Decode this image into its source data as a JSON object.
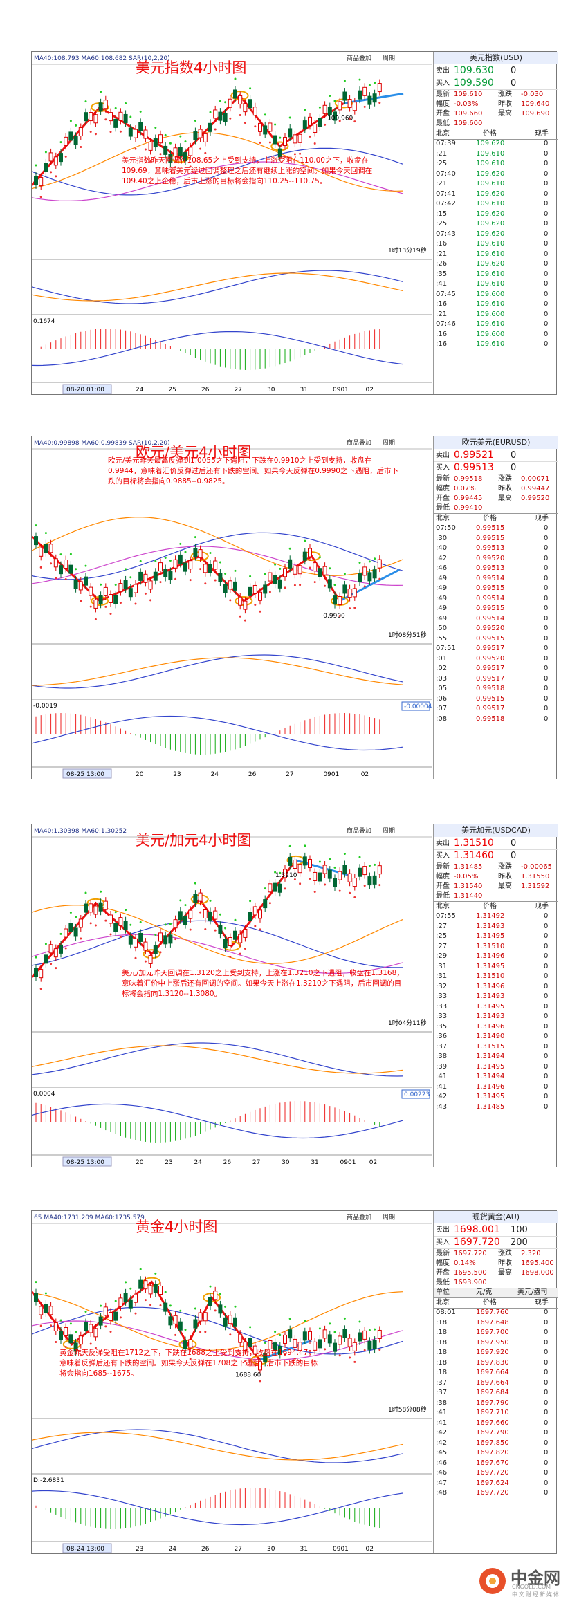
{
  "panels": [
    {
      "title": "美元指数4小时图",
      "indicator": "MA40:108.793 MA60:108.682 SAR(10,2,20)",
      "buttons": [
        "商品叠加",
        "周期"
      ],
      "price_label": "109.969",
      "timer": "1时13分19秒",
      "macd_label": "0.1674",
      "side_label": null,
      "cursor_date": "08-20 01:00",
      "x_labels": [
        "24",
        "25",
        "26",
        "27",
        "30",
        "31",
        "0901",
        "02"
      ],
      "annotation": "美元指数昨天回调在108.65之上受到支持，上涨受阻在110.00之下，收盘在109.69，意味着美元经过回调整理之后还有继续上涨的空间。如果今天回调在109.40之上企稳，后市上涨的目标将会指向110.25--110.75。",
      "quote": {
        "name": "美元指数(USD)",
        "big": [
          [
            "卖出",
            "109.630",
            "0"
          ],
          [
            "买入",
            "109.590",
            "0"
          ]
        ],
        "lines": [
          [
            "最新",
            "109.610",
            "涨跌",
            "-0.030"
          ],
          [
            "幅度",
            "-0.03%",
            "昨收",
            "109.640"
          ],
          [
            "开盘",
            "109.660",
            "最高",
            "109.690"
          ],
          [
            "最低",
            "109.600"
          ]
        ]
      },
      "ticks": {
        "header": [
          "北京",
          "价格",
          "现手"
        ],
        "rows": [
          [
            "07:39",
            "109.620",
            "0"
          ],
          [
            ":21",
            "109.610",
            "0"
          ],
          [
            ":25",
            "109.610",
            "0"
          ],
          [
            "07:40",
            "109.620",
            "0"
          ],
          [
            ":21",
            "109.610",
            "0"
          ],
          [
            "07:41",
            "109.620",
            "0"
          ],
          [
            "07:42",
            "109.610",
            "0"
          ],
          [
            ":15",
            "109.620",
            "0"
          ],
          [
            ":25",
            "109.620",
            "0"
          ],
          [
            "07:43",
            "109.620",
            "0"
          ],
          [
            ":16",
            "109.610",
            "0"
          ],
          [
            ":21",
            "109.610",
            "0"
          ],
          [
            ":26",
            "109.620",
            "0"
          ],
          [
            ":35",
            "109.610",
            "0"
          ],
          [
            ":41",
            "109.610",
            "0"
          ],
          [
            "07:45",
            "109.600",
            "0"
          ],
          [
            ":16",
            "109.610",
            "0"
          ],
          [
            ":21",
            "109.600",
            "0"
          ],
          [
            "07:46",
            "109.610",
            "0"
          ],
          [
            ":16",
            "109.600",
            "0"
          ],
          [
            ":16",
            "109.610",
            "0"
          ]
        ]
      }
    },
    {
      "title": "欧元/美元4小时图",
      "indicator": "MA40:0.99898 MA60:0.99839 SAR(10,2,20)",
      "buttons": [
        "商品叠加",
        "周期"
      ],
      "price_label": "0.9900",
      "timer": "1时08分51秒",
      "macd_label": "-0.0019",
      "side_label": "-0.00004",
      "cursor_date": "08-25 13:00",
      "x_labels": [
        "20",
        "23",
        "24",
        "26",
        "27",
        "0901",
        "02"
      ],
      "annotation": "欧元/美元昨天最高反弹到1.0055之下遇阻，下跌在0.9910之上受到支持，收盘在0.9944，意味着汇价反弹过后还有下跌的空间。如果今天反弹在0.9990之下遇阻，后市下跌的目标将会指向0.9885--0.9825。",
      "quote": {
        "name": "欧元美元(EURUSD)",
        "big": [
          [
            "卖出",
            "0.99521",
            "0"
          ],
          [
            "买入",
            "0.99513",
            "0"
          ]
        ],
        "lines": [
          [
            "最新",
            "0.99518",
            "涨跌",
            "0.00071"
          ],
          [
            "幅度",
            "0.07%",
            "昨收",
            "0.99447"
          ],
          [
            "开盘",
            "0.99445",
            "最高",
            "0.99520"
          ],
          [
            "最低",
            "0.99410"
          ]
        ]
      },
      "ticks": {
        "header": [
          "北京",
          "价格",
          "现手"
        ],
        "rows": [
          [
            "07:50",
            "0.99515",
            "0"
          ],
          [
            ":30",
            "0.99515",
            "0"
          ],
          [
            ":40",
            "0.99513",
            "0"
          ],
          [
            ":42",
            "0.99520",
            "0"
          ],
          [
            ":46",
            "0.99513",
            "0"
          ],
          [
            ":49",
            "0.99514",
            "0"
          ],
          [
            ":49",
            "0.99515",
            "0"
          ],
          [
            ":49",
            "0.99514",
            "0"
          ],
          [
            ":49",
            "0.99515",
            "0"
          ],
          [
            ":49",
            "0.99514",
            "0"
          ],
          [
            ":50",
            "0.99520",
            "0"
          ],
          [
            ":55",
            "0.99515",
            "0"
          ],
          [
            "07:51",
            "0.99517",
            "0"
          ],
          [
            ":01",
            "0.99520",
            "0"
          ],
          [
            ":02",
            "0.99517",
            "0"
          ],
          [
            ":03",
            "0.99517",
            "0"
          ],
          [
            ":05",
            "0.99518",
            "0"
          ],
          [
            ":06",
            "0.99515",
            "0"
          ],
          [
            ":07",
            "0.99517",
            "0"
          ],
          [
            ":08",
            "0.99518",
            "0"
          ]
        ]
      }
    },
    {
      "title": "美元/加元4小时图",
      "indicator": "MA40:1.30398 MA60:1.30252",
      "buttons": [
        "商品叠加",
        "周期"
      ],
      "price_label": "1.3210",
      "timer": "1时04分11秒",
      "macd_label": "0.0004",
      "side_label": "0.00223",
      "cursor_date": "08-25 13:00",
      "x_labels": [
        "20",
        "23",
        "24",
        "26",
        "27",
        "30",
        "31",
        "0901",
        "02"
      ],
      "annotation": "美元/加元昨天回调在1.3120之上受到支持，上涨在1.3210之下遇阻，收盘在1.3168，意味着汇价中上涨后还有回调的空间。如果今天上涨在1.3210之下遇阻，后市回调的目标将会指向1.3120--1.3080。",
      "quote": {
        "name": "美元加元(USDCAD)",
        "big": [
          [
            "卖出",
            "1.31510",
            "0"
          ],
          [
            "买入",
            "1.31460",
            "0"
          ]
        ],
        "lines": [
          [
            "最新",
            "1.31485",
            "涨跌",
            "-0.00065"
          ],
          [
            "幅度",
            "-0.05%",
            "昨收",
            "1.31550"
          ],
          [
            "开盘",
            "1.31540",
            "最高",
            "1.31592"
          ],
          [
            "最低",
            "1.31440"
          ]
        ]
      },
      "ticks": {
        "header": [
          "北京",
          "价格",
          "现手"
        ],
        "rows": [
          [
            "07:55",
            "1.31492",
            "0"
          ],
          [
            ":27",
            "1.31493",
            "0"
          ],
          [
            ":25",
            "1.31495",
            "0"
          ],
          [
            ":27",
            "1.31510",
            "0"
          ],
          [
            ":29",
            "1.31496",
            "0"
          ],
          [
            ":31",
            "1.31495",
            "0"
          ],
          [
            ":31",
            "1.31510",
            "0"
          ],
          [
            ":32",
            "1.31496",
            "0"
          ],
          [
            ":33",
            "1.31493",
            "0"
          ],
          [
            ":33",
            "1.31495",
            "0"
          ],
          [
            ":33",
            "1.31493",
            "0"
          ],
          [
            ":35",
            "1.31496",
            "0"
          ],
          [
            ":36",
            "1.31490",
            "0"
          ],
          [
            ":37",
            "1.31515",
            "0"
          ],
          [
            ":38",
            "1.31494",
            "0"
          ],
          [
            ":39",
            "1.31495",
            "0"
          ],
          [
            ":41",
            "1.31494",
            "0"
          ],
          [
            ":41",
            "1.31496",
            "0"
          ],
          [
            ":42",
            "1.31495",
            "0"
          ],
          [
            ":43",
            "1.31485",
            "0"
          ]
        ]
      }
    },
    {
      "title": "黄金4小时图",
      "indicator": "65 MA40:1731.209 MA60:1735.579",
      "buttons": [
        "商品叠加",
        "周期"
      ],
      "price_label": "1688.60",
      "timer": "1时58分08秒",
      "macd_label": "D:-2.6831",
      "side_label": null,
      "cursor_date": "08-24 13:00",
      "x_labels": [
        "23",
        "24",
        "26",
        "27",
        "30",
        "31",
        "0901",
        "02"
      ],
      "annotation": "黄金昨天反弹受阻在1712之下，下跌在1688之上受到支持，收盘在1694.47，意味着反弹后还有下跌的空间。如果今天反弹在1708之下遇阻，后市下跌的目标将会指向1685--1675。",
      "quote": {
        "name": "现货黄金(AU)",
        "big": [
          [
            "卖出",
            "1698.001",
            "100"
          ],
          [
            "买入",
            "1697.720",
            "200"
          ]
        ],
        "lines": [
          [
            "最新",
            "1697.720",
            "涨跌",
            "2.320"
          ],
          [
            "幅度",
            "0.14%",
            "昨收",
            "1695.400"
          ],
          [
            "开盘",
            "1695.500",
            "最高",
            "1698.000"
          ],
          [
            "最低",
            "1693.900"
          ]
        ],
        "unit": [
          "单位",
          "元/克",
          "美元/盎司"
        ]
      },
      "ticks": {
        "header": [
          "北京",
          "价格",
          "现手"
        ],
        "rows": [
          [
            "08:01",
            "1697.760",
            "0"
          ],
          [
            ":18",
            "1697.648",
            "0"
          ],
          [
            ":18",
            "1697.700",
            "0"
          ],
          [
            ":18",
            "1697.950",
            "0"
          ],
          [
            ":18",
            "1697.920",
            "0"
          ],
          [
            ":18",
            "1697.830",
            "0"
          ],
          [
            ":18",
            "1697.664",
            "0"
          ],
          [
            ":37",
            "1697.664",
            "0"
          ],
          [
            ":37",
            "1697.684",
            "0"
          ],
          [
            ":38",
            "1697.790",
            "0"
          ],
          [
            ":41",
            "1697.710",
            "0"
          ],
          [
            ":41",
            "1697.660",
            "0"
          ],
          [
            ":42",
            "1697.790",
            "0"
          ],
          [
            ":42",
            "1697.850",
            "0"
          ],
          [
            ":45",
            "1697.820",
            "0"
          ],
          [
            ":46",
            "1697.670",
            "0"
          ],
          [
            ":46",
            "1697.720",
            "0"
          ],
          [
            ":47",
            "1697.624",
            "0"
          ],
          [
            ":48",
            "1697.720",
            "0"
          ]
        ]
      }
    }
  ],
  "logo": {
    "name": "中金网",
    "url": "CNGOLD.COM",
    "slogan": "中文财经新媒体"
  }
}
